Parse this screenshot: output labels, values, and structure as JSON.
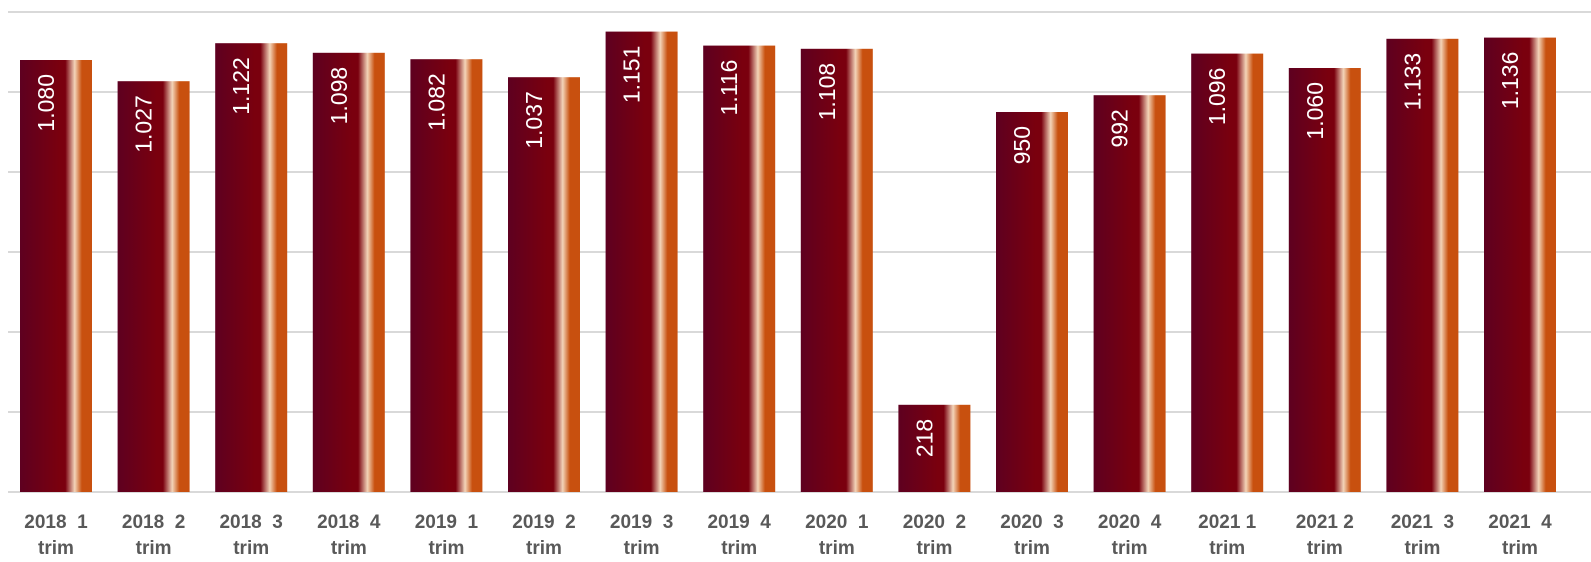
{
  "chart_data": {
    "type": "bar",
    "title": "",
    "xlabel": "",
    "ylabel": "",
    "grid": true,
    "y_axis_labels_shown": false,
    "ylim": [
      0,
      1200
    ],
    "gridline_step": 200,
    "categories": [
      [
        "2018  1",
        "trim"
      ],
      [
        "2018  2",
        "trim"
      ],
      [
        "2018  3",
        "trim"
      ],
      [
        "2018  4",
        "trim"
      ],
      [
        "2019  1",
        "trim"
      ],
      [
        "2019  2",
        "trim"
      ],
      [
        "2019  3",
        "trim"
      ],
      [
        "2019  4",
        "trim"
      ],
      [
        "2020  1",
        "trim"
      ],
      [
        "2020  2",
        "trim"
      ],
      [
        "2020  3",
        "trim"
      ],
      [
        "2020  4",
        "trim"
      ],
      [
        "2021 1",
        "trim"
      ],
      [
        "2021 2",
        "trim"
      ],
      [
        "2021  3",
        "trim"
      ],
      [
        "2021  4",
        "trim"
      ]
    ],
    "values": [
      1080,
      1027,
      1122,
      1098,
      1082,
      1037,
      1151,
      1116,
      1108,
      218,
      950,
      992,
      1096,
      1060,
      1133,
      1136
    ],
    "data_labels": [
      "1.080",
      "1.027",
      "1.122",
      "1.098",
      "1.082",
      "1.037",
      "1.151",
      "1.116",
      "1.108",
      "218",
      "950",
      "992",
      "1.096",
      "1.060",
      "1.133",
      "1.136"
    ],
    "colors": {
      "bar_dark": "#5e0020",
      "bar_mid": "#7a000e",
      "bar_highlight": "#f3d4b8",
      "bar_edge": "#c8500f",
      "gridline": "#d9d9d9",
      "tick_text": "#595959",
      "label_text": "#ffffff"
    }
  }
}
